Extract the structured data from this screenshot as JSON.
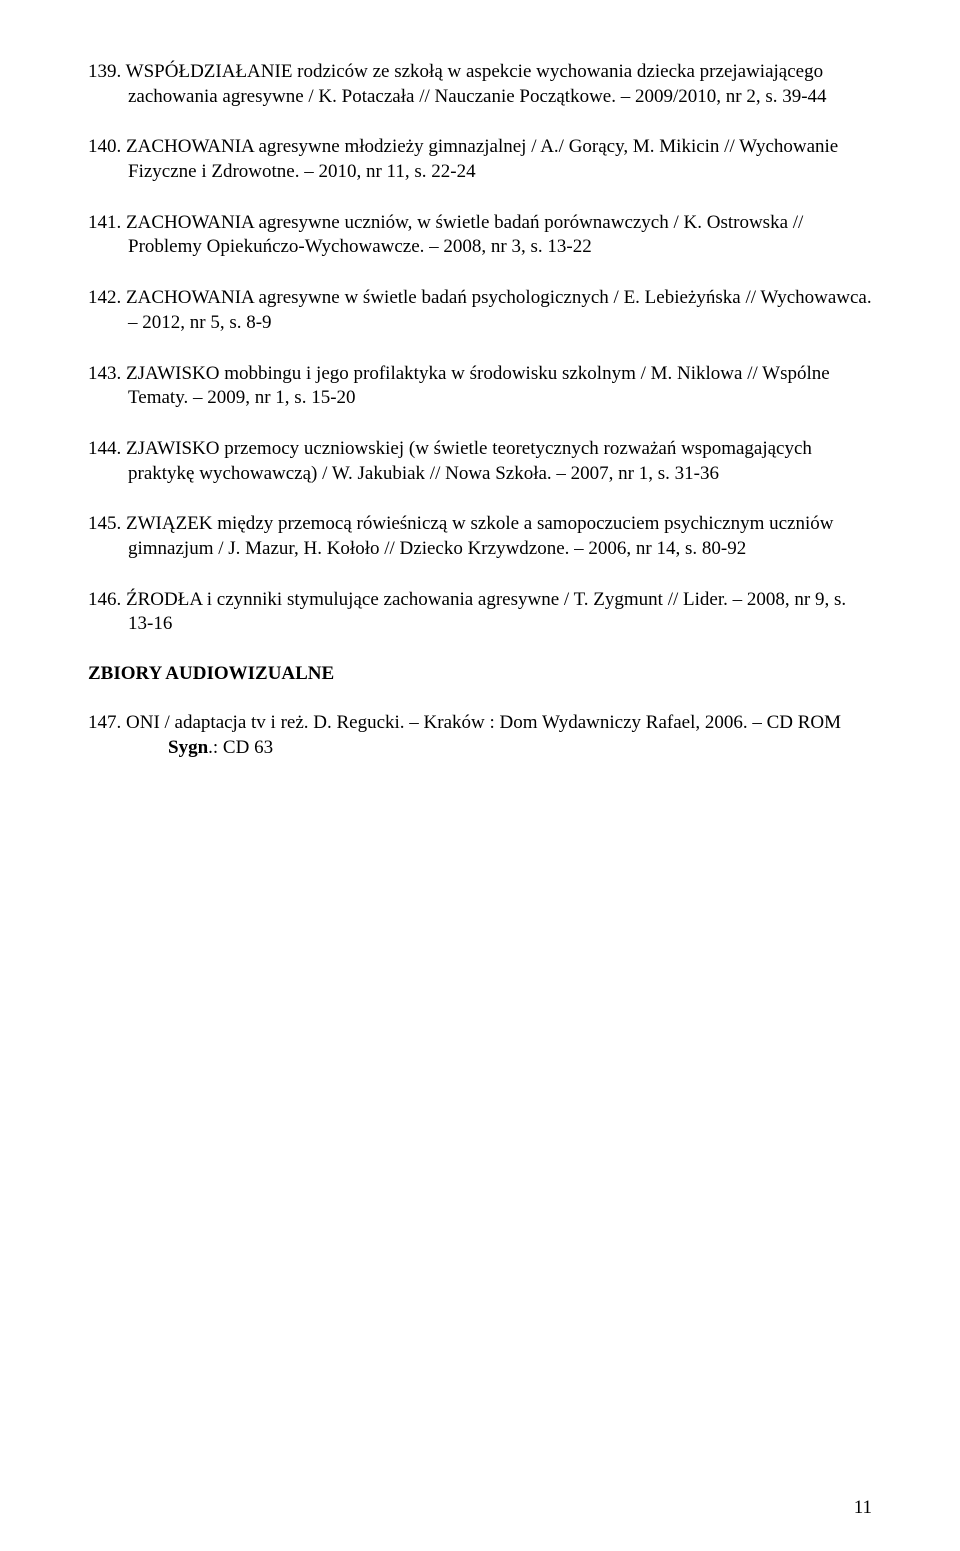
{
  "entries": [
    {
      "num": "139.",
      "text": "WSPÓŁDZIAŁANIE rodziców ze szkołą w aspekcie wychowania dziecka przejawiającego zachowania agresywne / K. Potaczała // Nauczanie Początkowe. – 2009/2010, nr 2, s. 39-44"
    },
    {
      "num": "140.",
      "text": "ZACHOWANIA agresywne młodzieży gimnazjalnej / A./ Gorący, M. Mikicin // Wychowanie Fizyczne i Zdrowotne. – 2010, nr 11, s. 22-24"
    },
    {
      "num": "141.",
      "text": "ZACHOWANIA agresywne uczniów, w świetle badań porównawczych / K. Ostrowska // Problemy Opiekuńczo-Wychowawcze. – 2008, nr 3, s. 13-22"
    },
    {
      "num": "142.",
      "text": "ZACHOWANIA agresywne w świetle badań psychologicznych / E. Lebieżyńska // Wychowawca. – 2012, nr 5, s. 8-9"
    },
    {
      "num": "143.",
      "text": "ZJAWISKO mobbingu i jego profilaktyka w środowisku szkolnym / M. Niklowa // Wspólne Tematy. – 2009, nr 1, s. 15-20"
    },
    {
      "num": "144.",
      "text": "ZJAWISKO przemocy uczniowskiej (w świetle teoretycznych rozważań wspomagających praktykę wychowawczą) / W. Jakubiak // Nowa Szkoła. – 2007, nr 1, s. 31-36"
    },
    {
      "num": "145.",
      "text": "ZWIĄZEK między przemocą rówieśniczą w szkole a samopoczuciem psychicznym uczniów gimnazjum / J. Mazur, H. Kołoło // Dziecko Krzywdzone. – 2006, nr 14, s. 80-92"
    },
    {
      "num": "146.",
      "text": "ŹRODŁA  i czynniki stymulujące zachowania agresywne / T. Zygmunt // Lider. – 2008, nr 9, s. 13-16"
    }
  ],
  "section_heading": "ZBIORY AUDIOWIZUALNE",
  "av_entry": {
    "num": "147.",
    "text": "ONI / adaptacja tv i reż. D. Regucki. – Kraków : Dom Wydawniczy Rafael, 2006. – CD ROM",
    "sygn_label": "Sygn",
    "sygn_value": ".: CD 63"
  },
  "page_number": "11"
}
